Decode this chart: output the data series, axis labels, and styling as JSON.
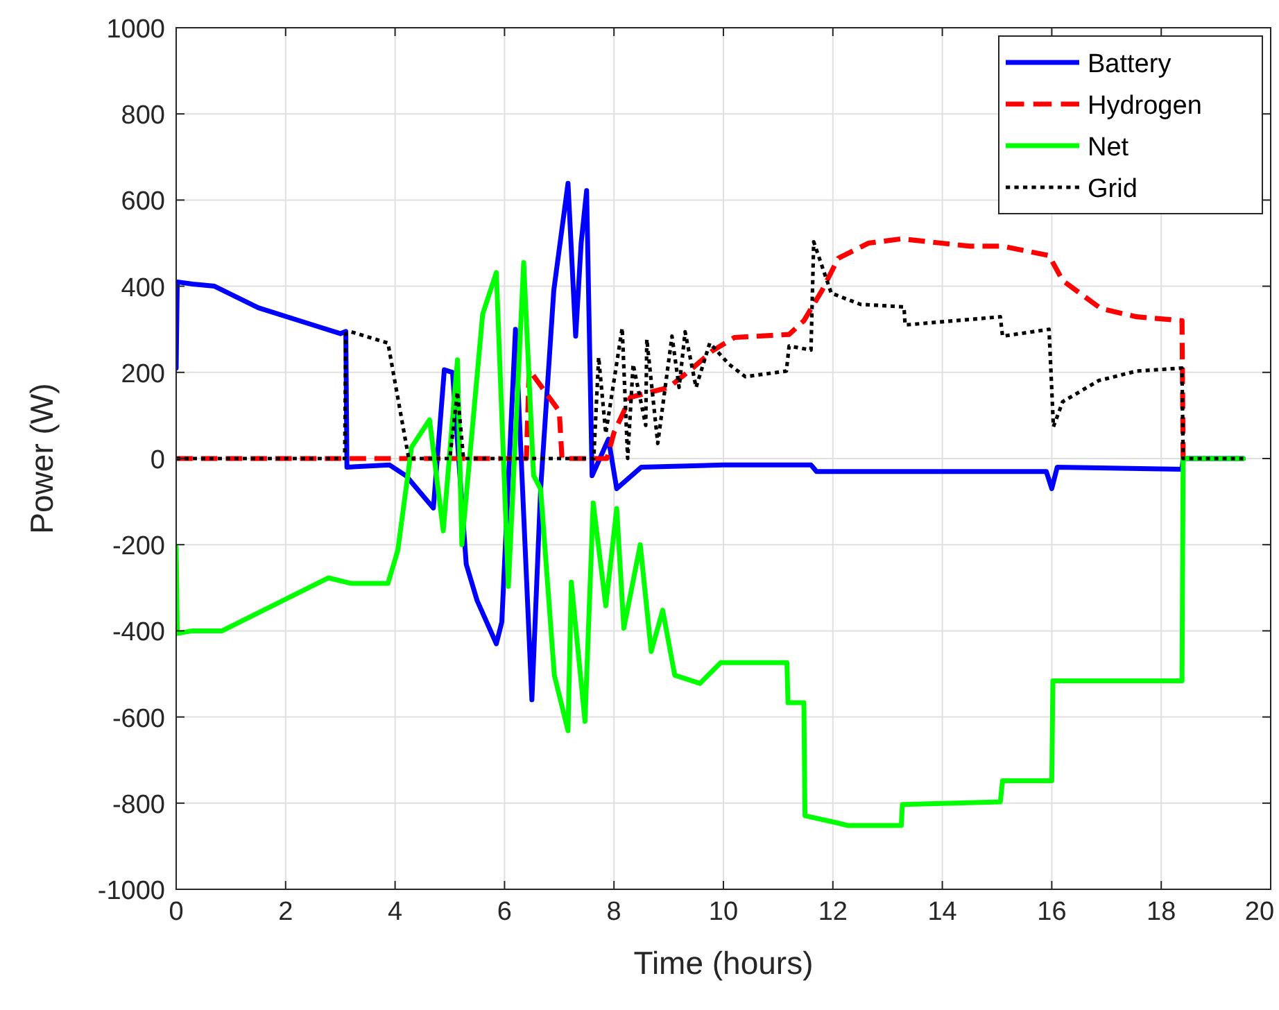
{
  "chart_data": {
    "type": "line",
    "xlabel": "Time (hours)",
    "ylabel": "Power (W)",
    "xlim": [
      0,
      20
    ],
    "ylim": [
      -1000,
      1000
    ],
    "xticks": [
      0,
      2,
      4,
      6,
      8,
      10,
      12,
      14,
      16,
      18,
      20
    ],
    "yticks": [
      -1000,
      -800,
      -600,
      -400,
      -200,
      0,
      200,
      400,
      600,
      800,
      1000
    ],
    "grid": true,
    "legend": "top right",
    "marker": "none",
    "series": [
      {
        "name": "Battery",
        "color": "#0000ff",
        "line_style": "solid",
        "x": [
          0,
          0.02,
          0.3,
          0.7,
          1.5,
          2.5,
          3.0,
          3.1,
          3.12,
          3.9,
          4.2,
          4.7,
          4.9,
          5.05,
          5.3,
          5.5,
          5.85,
          5.95,
          6.2,
          6.5,
          6.66,
          6.9,
          7.16,
          7.3,
          7.4,
          7.5,
          7.6,
          7.9,
          8.05,
          8.5,
          10,
          11.6,
          11.7,
          15.9,
          16.0,
          16.1,
          18.38,
          18.4,
          19.5
        ],
        "values": [
          210,
          410,
          405,
          400,
          350,
          310,
          290,
          295,
          -20,
          -15,
          -40,
          -115,
          206,
          200,
          -245,
          -330,
          -430,
          -380,
          300,
          -560,
          -71,
          390,
          639,
          284,
          500,
          622,
          -40,
          45,
          -70,
          -20,
          -15,
          -15,
          -30,
          -30,
          -70,
          -20,
          -25,
          0,
          0
        ]
      },
      {
        "name": "Hydrogen",
        "color": "#ff0000",
        "line_style": "dashed",
        "x": [
          0,
          6.4,
          6.45,
          7.0,
          7.05,
          7.87,
          8.0,
          8.3,
          9.0,
          9.4,
          9.8,
          10.2,
          11.2,
          11.47,
          11.8,
          12.1,
          12.65,
          13.25,
          14.5,
          15.1,
          15.95,
          16.2,
          16.9,
          17.55,
          18.38,
          18.4
        ],
        "values": [
          0,
          0,
          206,
          110,
          0,
          0,
          60,
          142,
          165,
          206,
          250,
          281,
          288,
          320,
          390,
          465,
          500,
          510,
          493,
          493,
          471,
          413,
          348,
          329,
          320,
          0
        ]
      },
      {
        "name": "Net",
        "color": "#00ff00",
        "line_style": "solid",
        "x": [
          0,
          0.02,
          0.3,
          0.84,
          2.78,
          3.2,
          3.87,
          4.05,
          4.3,
          4.63,
          4.88,
          5.14,
          5.22,
          5.6,
          5.85,
          6.07,
          6.35,
          6.53,
          6.66,
          6.91,
          7.16,
          7.22,
          7.47,
          7.62,
          7.85,
          8.05,
          8.18,
          8.48,
          8.68,
          8.89,
          9.11,
          9.57,
          9.95,
          11.16,
          11.18,
          11.47,
          11.49,
          12.05,
          12.28,
          13.25,
          13.27,
          15.06,
          15.1,
          16.0,
          16.02,
          18.38,
          18.4,
          19.5
        ],
        "values": [
          -206,
          -406,
          -400,
          -400,
          -277,
          -290,
          -290,
          -213,
          26,
          90,
          -168,
          229,
          -200,
          335,
          432,
          -297,
          455,
          -39,
          -71,
          -503,
          -632,
          -287,
          -610,
          -103,
          -342,
          -116,
          -394,
          -200,
          -448,
          -352,
          -503,
          -522,
          -474,
          -474,
          -567,
          -567,
          -829,
          -845,
          -852,
          -852,
          -803,
          -797,
          -748,
          -748,
          -516,
          -516,
          0,
          0
        ]
      },
      {
        "name": "Grid",
        "color": "#000000",
        "line_style": "dotted",
        "x": [
          0,
          3.08,
          3.1,
          3.2,
          3.87,
          4.25,
          5.0,
          5.14,
          5.25,
          7.63,
          7.72,
          7.85,
          8.15,
          8.25,
          8.35,
          8.58,
          8.6,
          8.8,
          9.06,
          9.19,
          9.3,
          9.5,
          9.75,
          10.1,
          10.4,
          11.15,
          11.2,
          11.6,
          11.65,
          11.97,
          12.5,
          13.3,
          13.32,
          15.06,
          15.1,
          15.95,
          16.03,
          16.2,
          16.86,
          17.55,
          18.38,
          18.4,
          19.5
        ],
        "values": [
          0,
          0,
          290,
          294,
          268,
          0,
          0,
          155,
          0,
          0,
          235,
          58,
          303,
          0,
          219,
          77,
          277,
          35,
          284,
          165,
          294,
          165,
          268,
          219,
          190,
          203,
          261,
          252,
          503,
          384,
          358,
          352,
          310,
          329,
          284,
          300,
          74,
          132,
          181,
          203,
          210,
          0,
          0
        ]
      }
    ]
  }
}
